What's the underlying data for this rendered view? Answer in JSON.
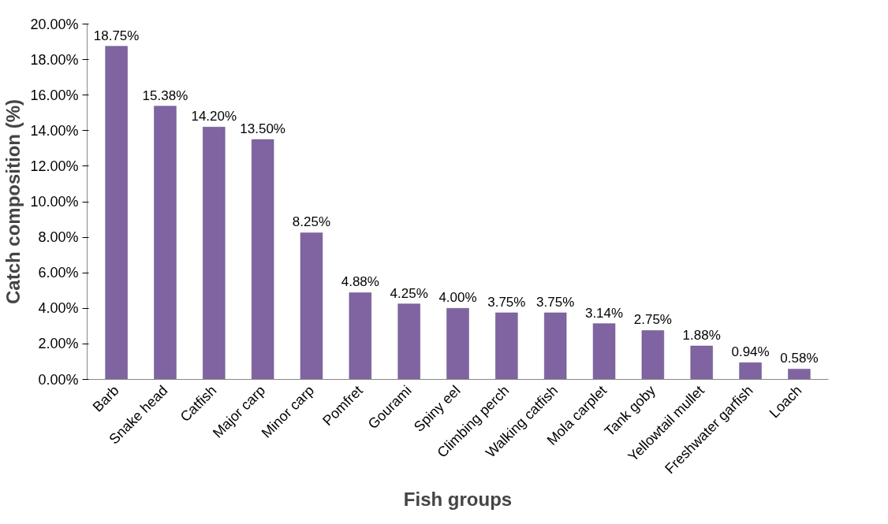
{
  "chart_data": {
    "type": "bar",
    "xlabel": "Fish groups",
    "ylabel": "Catch composition (%)",
    "categories": [
      "Barb",
      "Snake head",
      "Catfish",
      "Major carp",
      "Minor carp",
      "Pomfret",
      "Gourami",
      "Spiny eel",
      "Climbing perch",
      "Walking catfish",
      "Mola carplet",
      "Tank goby",
      "Yellowtail mullet",
      "Freshwater garfish",
      "Loach"
    ],
    "values": [
      18.75,
      15.38,
      14.2,
      13.5,
      8.25,
      4.88,
      4.25,
      4.0,
      3.75,
      3.75,
      3.14,
      2.75,
      1.88,
      0.94,
      0.58
    ],
    "value_labels": [
      "18.75%",
      "15.38%",
      "14.20%",
      "13.50%",
      "8.25%",
      "4.88%",
      "4.25%",
      "4.00%",
      "3.75%",
      "3.75%",
      "3.14%",
      "2.75%",
      "1.88%",
      "0.94%",
      "0.58%"
    ],
    "color": "#8064a2",
    "ylim": [
      0,
      20
    ],
    "yticks": [
      {
        "value": 0,
        "label": "0.00%"
      },
      {
        "value": 2,
        "label": "2.00%"
      },
      {
        "value": 4,
        "label": "4.00%"
      },
      {
        "value": 6,
        "label": "6.00%"
      },
      {
        "value": 8,
        "label": "8.00%"
      },
      {
        "value": 10,
        "label": "10.00%"
      },
      {
        "value": 12,
        "label": "12.00%"
      },
      {
        "value": 14,
        "label": "14.00%"
      },
      {
        "value": 16,
        "label": "16.00%"
      },
      {
        "value": 18,
        "label": "18.00%"
      },
      {
        "value": 20,
        "label": "20.00%"
      }
    ],
    "grid": false
  }
}
